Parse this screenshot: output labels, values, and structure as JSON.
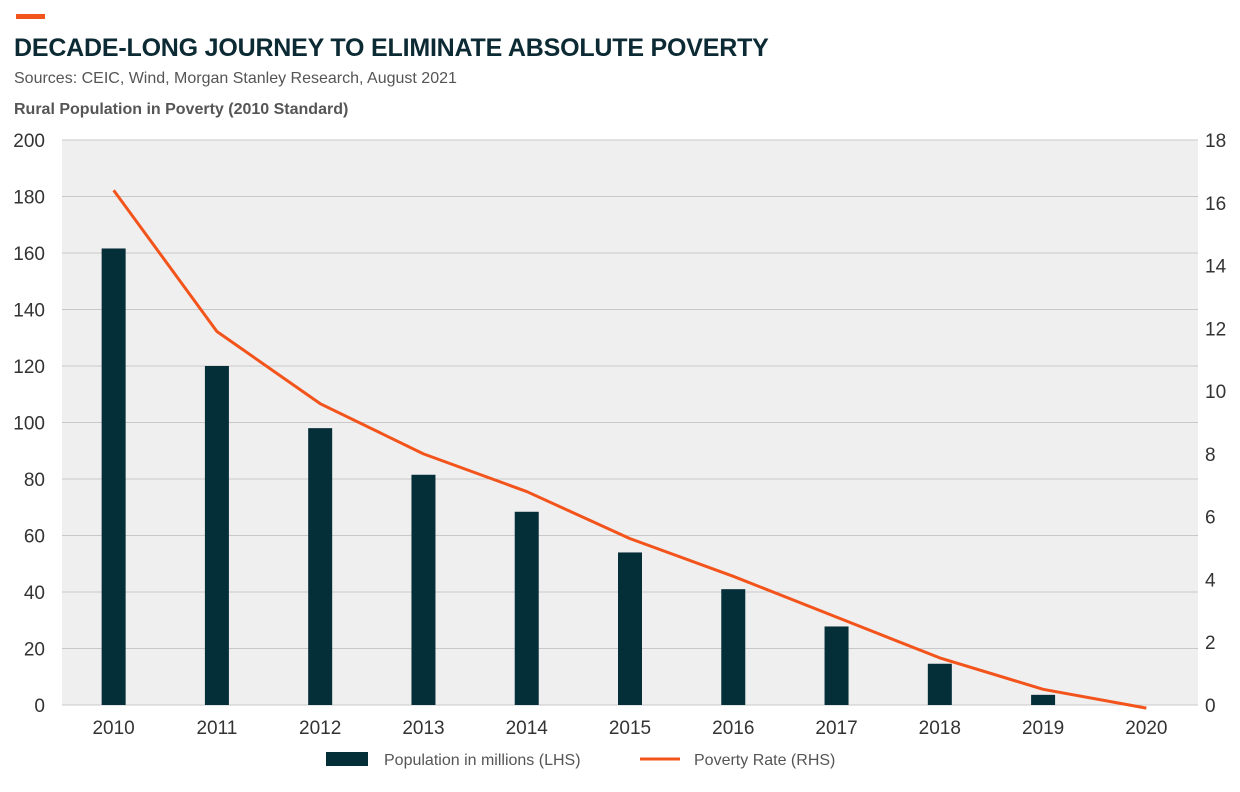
{
  "header": {
    "title": "DECADE-LONG JOURNEY TO ELIMINATE ABSOLUTE POVERTY",
    "subtitle": "Sources: CEIC, Wind, Morgan Stanley Research, August 2021",
    "accent_color": "#f2541b"
  },
  "chart_data": {
    "type": "bar",
    "title": "Rural Population in Poverty (2010 Standard)",
    "categories": [
      "2010",
      "2011",
      "2012",
      "2013",
      "2014",
      "2015",
      "2016",
      "2017",
      "2018",
      "2019",
      "2020"
    ],
    "series": [
      {
        "name": "Population in millions (LHS)",
        "type": "bar",
        "axis": "left",
        "color": "#042e38",
        "values": [
          161.6,
          120.0,
          98.0,
          81.5,
          68.4,
          54.0,
          41.0,
          27.8,
          14.6,
          3.6,
          0
        ]
      },
      {
        "name": "Poverty Rate (RHS)",
        "type": "line",
        "axis": "right",
        "color": "#f2541b",
        "values": [
          16.4,
          11.9,
          9.6,
          8.0,
          6.8,
          5.3,
          4.1,
          2.8,
          1.5,
          0.5,
          -0.1
        ]
      }
    ],
    "y_left": {
      "min": 0,
      "max": 200,
      "step": 20,
      "ticks": [
        "0",
        "20",
        "40",
        "60",
        "80",
        "100",
        "120",
        "140",
        "160",
        "180",
        "200"
      ]
    },
    "y_right": {
      "min": 0,
      "max": 18,
      "step": 2,
      "ticks": [
        "0",
        "2",
        "4",
        "6",
        "8",
        "10",
        "12",
        "14",
        "16",
        "18"
      ]
    },
    "grid": true,
    "legend_position": "bottom",
    "plot_background": "#f0efef",
    "grid_color": "#c8c8c8"
  }
}
